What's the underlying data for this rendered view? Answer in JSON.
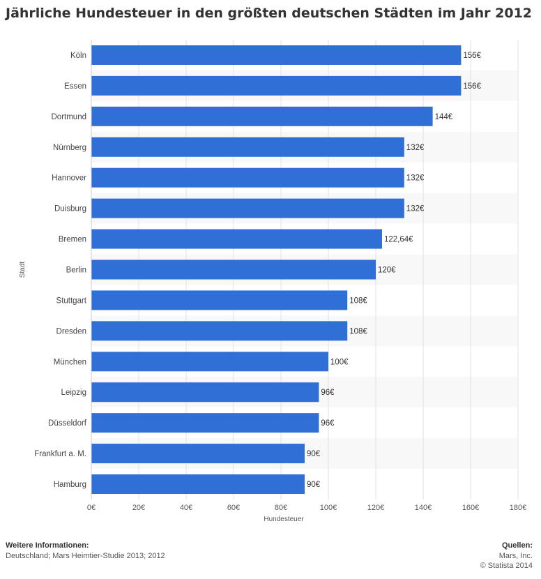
{
  "chart_data": {
    "type": "bar",
    "orientation": "horizontal",
    "title": "Jährliche Hundesteuer in den größten deutschen Städten im Jahr 2012",
    "xlabel": "Hundesteuer",
    "ylabel": "Stadt",
    "categories": [
      "Köln",
      "Essen",
      "Dortmund",
      "Nürnberg",
      "Hannover",
      "Duisburg",
      "Bremen",
      "Berlin",
      "Stuttgart",
      "Dresden",
      "München",
      "Leipzig",
      "Düsseldorf",
      "Frankfurt a. M.",
      "Hamburg"
    ],
    "values": [
      156,
      156,
      144,
      132,
      132,
      132,
      122.64,
      120,
      108,
      108,
      100,
      96,
      96,
      90,
      90
    ],
    "value_labels": [
      "156€",
      "156€",
      "144€",
      "132€",
      "132€",
      "132€",
      "122,64€",
      "120€",
      "108€",
      "108€",
      "100€",
      "96€",
      "96€",
      "90€",
      "90€"
    ],
    "xlim": [
      0,
      180
    ],
    "ticks": [
      0,
      20,
      40,
      60,
      80,
      100,
      120,
      140,
      160,
      180
    ],
    "tick_labels": [
      "0€",
      "20€",
      "40€",
      "60€",
      "80€",
      "100€",
      "120€",
      "140€",
      "160€",
      "180€"
    ],
    "grid": true,
    "bar_color": "#2f6fd6"
  },
  "footer": {
    "left_heading": "Weitere Informationen:",
    "left_text": "Deutschland; Mars Heimtier-Studie 2013; 2012",
    "right_heading": "Quellen:",
    "right_lines": [
      "Mars, Inc.",
      "© Statista 2014"
    ]
  }
}
